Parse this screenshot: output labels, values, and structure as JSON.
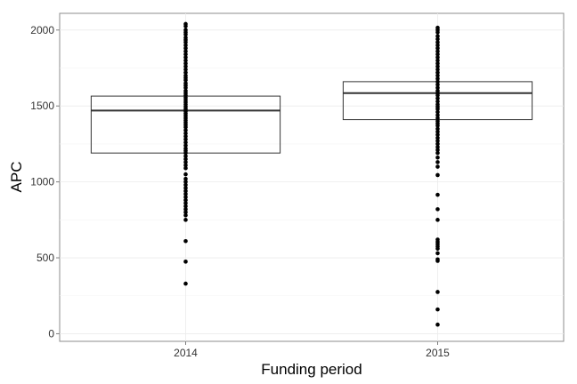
{
  "chart_data": {
    "type": "box",
    "xlabel": "Funding period",
    "ylabel": "APC",
    "ylim": [
      -50,
      2110
    ],
    "y_ticks": [
      0,
      500,
      1000,
      1500,
      2000
    ],
    "grid": true,
    "categories": [
      "2014",
      "2015"
    ],
    "boxes": [
      {
        "category": "2014",
        "q1": 1190,
        "median": 1470,
        "q3": 1565
      },
      {
        "category": "2015",
        "q1": 1410,
        "median": 1585,
        "q3": 1660
      }
    ],
    "points": [
      {
        "category": "2014",
        "values": [
          2040,
          2025,
          2000,
          1985,
          1970,
          1950,
          1935,
          1920,
          1900,
          1880,
          1860,
          1840,
          1820,
          1800,
          1780,
          1760,
          1740,
          1720,
          1700,
          1685,
          1670,
          1650,
          1635,
          1620,
          1600,
          1585,
          1570,
          1555,
          1540,
          1525,
          1510,
          1495,
          1480,
          1465,
          1450,
          1435,
          1420,
          1405,
          1390,
          1375,
          1360,
          1340,
          1320,
          1300,
          1280,
          1260,
          1240,
          1220,
          1205,
          1190,
          1170,
          1150,
          1130,
          1110,
          1090,
          1050,
          1020,
          1000,
          980,
          960,
          940,
          920,
          900,
          880,
          860,
          840,
          820,
          800,
          780,
          750,
          610,
          475,
          330
        ]
      },
      {
        "category": "2015",
        "values": [
          2015,
          2000,
          1985,
          1960,
          1940,
          1920,
          1900,
          1880,
          1860,
          1840,
          1820,
          1800,
          1780,
          1760,
          1740,
          1720,
          1700,
          1680,
          1660,
          1640,
          1620,
          1600,
          1585,
          1570,
          1550,
          1530,
          1510,
          1495,
          1480,
          1460,
          1440,
          1420,
          1400,
          1385,
          1370,
          1350,
          1330,
          1310,
          1290,
          1270,
          1250,
          1230,
          1210,
          1190,
          1160,
          1130,
          1100,
          1045,
          915,
          820,
          750,
          620,
          605,
          590,
          575,
          560,
          530,
          490,
          480,
          275,
          160,
          60
        ]
      }
    ]
  }
}
